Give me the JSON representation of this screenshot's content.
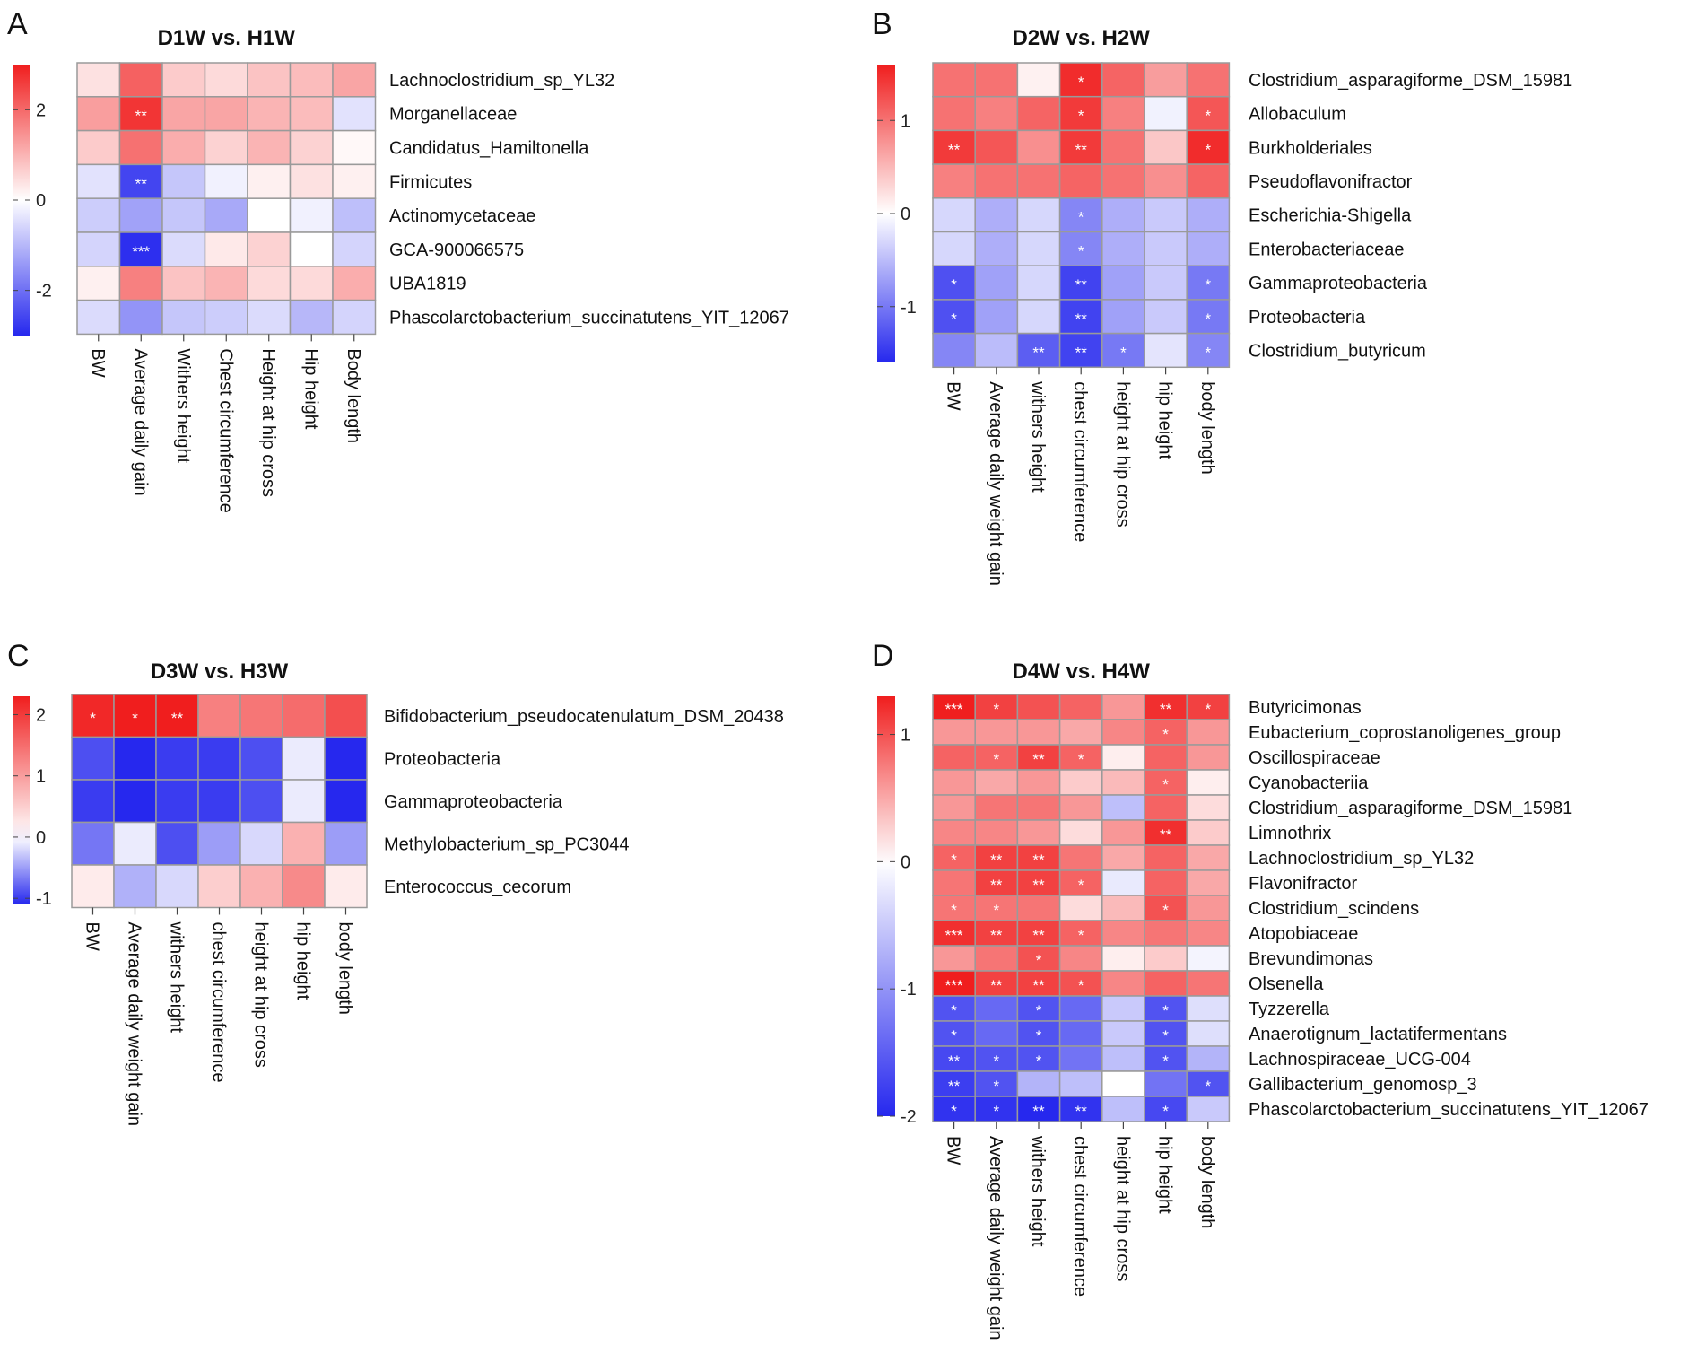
{
  "chart_data": [
    {
      "panel": "A",
      "type": "heatmap",
      "title": "D1W vs. H1W",
      "rows": [
        "Lachnoclostridium_sp_YL32",
        "Morganellaceae",
        "Candidatus_Hamiltonella",
        "Firmicutes",
        "Actinomycetaceae",
        "GCA-900066575",
        "UBA1819",
        "Phascolarctobacterium_succinatutens_YIT_12067"
      ],
      "cols": [
        "BW",
        "Average daily gain",
        "Withers height",
        "Chest circumference",
        "Height at hip cross",
        "Hip height",
        "Body length"
      ],
      "values": [
        [
          0.4,
          2.1,
          0.7,
          0.5,
          0.8,
          0.9,
          1.2
        ],
        [
          1.3,
          2.7,
          1.2,
          1.2,
          1.0,
          0.9,
          -0.4
        ],
        [
          0.7,
          1.9,
          1.1,
          0.6,
          1.0,
          0.6,
          0.1
        ],
        [
          -0.4,
          -2.6,
          -0.8,
          -0.2,
          0.2,
          0.4,
          0.2
        ],
        [
          -0.7,
          -1.3,
          -0.8,
          -1.2,
          0.0,
          -0.2,
          -0.9
        ],
        [
          -0.6,
          -2.9,
          -0.5,
          0.3,
          0.6,
          0.0,
          -0.6
        ],
        [
          0.2,
          1.7,
          0.8,
          1.0,
          0.5,
          0.5,
          1.1
        ],
        [
          -0.5,
          -1.5,
          -0.8,
          -0.7,
          -0.5,
          -1.0,
          -0.6
        ]
      ],
      "stars": [
        [
          "",
          "",
          "",
          "",
          "",
          "",
          ""
        ],
        [
          "",
          "**",
          "",
          "",
          "",
          "",
          ""
        ],
        [
          "",
          "",
          "",
          "",
          "",
          "",
          ""
        ],
        [
          "",
          "**",
          "",
          "",
          "",
          "",
          ""
        ],
        [
          "",
          "",
          "",
          "",
          "",
          "",
          ""
        ],
        [
          "",
          "***",
          "",
          "",
          "",
          "",
          ""
        ],
        [
          "",
          "",
          "",
          "",
          "",
          "",
          ""
        ],
        [
          "",
          "",
          "",
          "",
          "",
          "",
          ""
        ]
      ],
      "scale": {
        "min": -3,
        "max": 3,
        "ticks": [
          -2,
          0,
          2
        ]
      }
    },
    {
      "panel": "B",
      "type": "heatmap",
      "title": "D2W vs. H2W",
      "rows": [
        "Clostridium_asparagiforme_DSM_15981",
        "Allobaculum",
        "Burkholderiales",
        "Pseudoflavonifractor",
        "Escherichia-Shigella",
        "Enterobacteriaceae",
        "Gammaproteobacteria",
        "Proteobacteria",
        "Clostridium_butyricum"
      ],
      "cols": [
        "BW",
        "Average daily weight gain",
        "withers height",
        "chest circumference",
        "height at hip cross",
        "hip height",
        "body length"
      ],
      "values": [
        [
          1.0,
          1.0,
          0.1,
          1.5,
          1.1,
          0.7,
          1.0
        ],
        [
          1.0,
          0.9,
          1.1,
          1.4,
          0.9,
          -0.1,
          1.2
        ],
        [
          1.4,
          1.2,
          0.8,
          1.4,
          1.0,
          0.4,
          1.5
        ],
        [
          0.9,
          1.0,
          1.0,
          1.1,
          1.0,
          0.8,
          1.1
        ],
        [
          -0.3,
          -0.6,
          -0.3,
          -0.9,
          -0.6,
          -0.4,
          -0.6
        ],
        [
          -0.3,
          -0.6,
          -0.3,
          -0.9,
          -0.6,
          -0.4,
          -0.6
        ],
        [
          -1.3,
          -0.7,
          -0.3,
          -1.4,
          -0.7,
          -0.4,
          -1.0
        ],
        [
          -1.3,
          -0.7,
          -0.3,
          -1.4,
          -0.7,
          -0.4,
          -1.0
        ],
        [
          -0.9,
          -0.5,
          -1.2,
          -1.4,
          -1.0,
          -0.2,
          -0.9
        ]
      ],
      "stars": [
        [
          "",
          "",
          "",
          "*",
          "",
          "",
          ""
        ],
        [
          "",
          "",
          "",
          "*",
          "",
          "",
          "*"
        ],
        [
          "**",
          "",
          "",
          "**",
          "",
          "",
          "*"
        ],
        [
          "",
          "",
          "",
          "",
          "",
          "",
          ""
        ],
        [
          "",
          "",
          "",
          "*",
          "",
          "",
          ""
        ],
        [
          "",
          "",
          "",
          "*",
          "",
          "",
          ""
        ],
        [
          "*",
          "",
          "",
          "**",
          "",
          "",
          "*"
        ],
        [
          "*",
          "",
          "",
          "**",
          "",
          "",
          "*"
        ],
        [
          "",
          "",
          "**",
          "**",
          "*",
          "",
          "*"
        ]
      ],
      "scale": {
        "min": -1.6,
        "max": 1.6,
        "ticks": [
          -1,
          0,
          1
        ]
      }
    },
    {
      "panel": "C",
      "type": "heatmap",
      "title": "D3W vs. H3W",
      "rows": [
        "Bifidobacterium_pseudocatenulatum_DSM_20438",
        "Proteobacteria",
        "Gammaproteobacteria",
        "Methylobacterium_sp_PC3044",
        "Enterococcus_cecorum"
      ],
      "cols": [
        "BW",
        "Average daily weight gain",
        "withers height",
        "chest circumference",
        "height at hip cross",
        "hip height",
        "body length"
      ],
      "values": [
        [
          2.2,
          2.3,
          2.3,
          1.3,
          1.4,
          1.5,
          1.8
        ],
        [
          -0.9,
          -1.2,
          -1.0,
          -1.0,
          -0.9,
          -0.1,
          -1.2
        ],
        [
          -1.0,
          -1.2,
          -1.0,
          -1.0,
          -0.9,
          -0.1,
          -1.2
        ],
        [
          -0.7,
          -0.1,
          -0.9,
          -0.5,
          -0.2,
          0.8,
          -0.5
        ],
        [
          0.2,
          -0.4,
          -0.2,
          0.5,
          0.8,
          1.2,
          0.2
        ]
      ],
      "stars": [
        [
          "*",
          "*",
          "**",
          "",
          "",
          "",
          ""
        ],
        [
          "",
          "",
          "",
          "",
          "",
          "",
          ""
        ],
        [
          "",
          "",
          "",
          "",
          "",
          "",
          ""
        ],
        [
          "",
          "",
          "",
          "",
          "",
          "",
          ""
        ],
        [
          "",
          "",
          "",
          "",
          "",
          "",
          ""
        ]
      ],
      "scale": {
        "min": -1.1,
        "max": 2.3,
        "ticks": [
          -1,
          0,
          1,
          2
        ]
      }
    },
    {
      "panel": "D",
      "type": "heatmap",
      "title": "D4W vs. H4W",
      "rows": [
        "Butyricimonas",
        "Eubacterium_coprostanoligenes_group",
        "Oscillospiraceae",
        "Cyanobacteriia",
        "Clostridium_asparagiforme_DSM_15981",
        "Limnothrix",
        "Lachnoclostridium_sp_YL32",
        "Flavonifractor",
        "Clostridium_scindens",
        "Atopobiaceae",
        "Brevundimonas",
        "Olsenella",
        "Tyzzerella",
        "Anaerotignum_lactatifermentans",
        "Lachnospiraceae_UCG-004",
        "Gallibacterium_genomosp_3",
        "Phascolarctobacterium_succinatutens_YIT_12067"
      ],
      "cols": [
        "BW",
        "Average daily weight gain",
        "withers height",
        "chest circumference",
        "height at hip cross",
        "hip height",
        "body length"
      ],
      "values": [
        [
          1.3,
          1.1,
          1.0,
          0.9,
          0.6,
          1.2,
          1.1
        ],
        [
          0.6,
          0.6,
          0.6,
          0.5,
          0.7,
          0.9,
          0.6
        ],
        [
          0.9,
          0.9,
          1.1,
          0.9,
          0.1,
          0.9,
          0.6
        ],
        [
          0.6,
          0.5,
          0.6,
          0.3,
          0.4,
          0.9,
          0.1
        ],
        [
          0.6,
          0.8,
          0.8,
          0.6,
          -0.6,
          0.9,
          0.2
        ],
        [
          0.7,
          0.7,
          0.6,
          0.2,
          0.6,
          1.2,
          0.3
        ],
        [
          0.9,
          1.1,
          1.1,
          0.8,
          0.5,
          0.9,
          0.5
        ],
        [
          0.8,
          1.1,
          1.1,
          0.9,
          -0.2,
          0.9,
          0.5
        ],
        [
          0.8,
          0.8,
          0.8,
          0.2,
          0.4,
          1.0,
          0.6
        ],
        [
          1.2,
          1.1,
          1.1,
          0.9,
          0.7,
          0.8,
          0.7
        ],
        [
          0.6,
          0.8,
          1.0,
          0.7,
          0.1,
          0.3,
          -0.1
        ],
        [
          1.3,
          1.1,
          1.1,
          1.0,
          0.7,
          0.9,
          0.8
        ],
        [
          -1.6,
          -1.4,
          -1.6,
          -1.4,
          -0.5,
          -1.6,
          -0.3
        ],
        [
          -1.6,
          -1.4,
          -1.6,
          -1.4,
          -0.5,
          -1.6,
          -0.3
        ],
        [
          -1.7,
          -1.6,
          -1.6,
          -1.3,
          -0.6,
          -1.6,
          -0.7
        ],
        [
          -1.8,
          -1.6,
          -0.7,
          -0.6,
          0.0,
          -1.3,
          -1.6
        ],
        [
          -1.9,
          -1.9,
          -2.0,
          -1.9,
          -0.6,
          -1.7,
          -0.5
        ]
      ],
      "stars": [
        [
          "***",
          "*",
          "",
          "",
          "",
          "**",
          "*"
        ],
        [
          "",
          "",
          "",
          "",
          "",
          "*",
          ""
        ],
        [
          "",
          "*",
          "**",
          "*",
          "",
          "",
          ""
        ],
        [
          "",
          "",
          "",
          "",
          "",
          "*",
          ""
        ],
        [
          "",
          "",
          "",
          "",
          "",
          "",
          ""
        ],
        [
          "",
          "",
          "",
          "",
          "",
          "**",
          ""
        ],
        [
          "*",
          "**",
          "**",
          "",
          "",
          "",
          ""
        ],
        [
          "",
          "**",
          "**",
          "*",
          "",
          "",
          ""
        ],
        [
          "*",
          "*",
          "",
          "",
          "",
          "*",
          ""
        ],
        [
          "***",
          "**",
          "**",
          "*",
          "",
          "",
          ""
        ],
        [
          "",
          "",
          "*",
          "",
          "",
          "",
          ""
        ],
        [
          "***",
          "**",
          "**",
          "*",
          "",
          "",
          ""
        ],
        [
          "*",
          "",
          "*",
          "",
          "",
          "*",
          ""
        ],
        [
          "*",
          "",
          "*",
          "",
          "",
          "*",
          ""
        ],
        [
          "**",
          "*",
          "*",
          "",
          "",
          "*",
          ""
        ],
        [
          "**",
          "*",
          "",
          "",
          "",
          "",
          "*"
        ],
        [
          "*",
          "*",
          "**",
          "**",
          "",
          "*",
          ""
        ]
      ],
      "scale": {
        "min": -2.0,
        "max": 1.3,
        "ticks": [
          -2,
          -1,
          0,
          1
        ]
      }
    }
  ]
}
